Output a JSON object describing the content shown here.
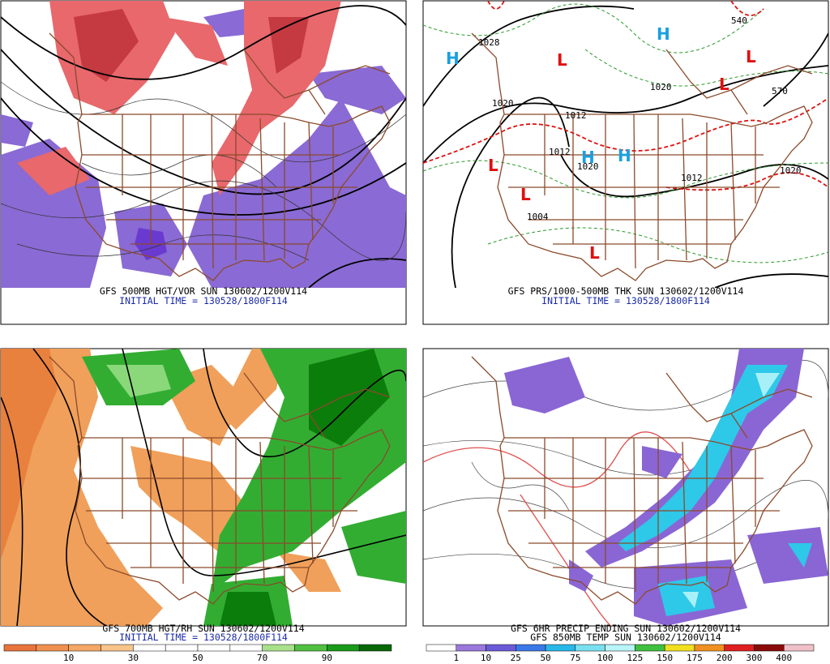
{
  "panels": [
    {
      "caption": "GFS 500MB HGT/VOR SUN 130602/1200V114",
      "subcaption": "INITIAL TIME = 130528/1800F114"
    },
    {
      "caption": "GFS PRS/1000-500MB THK SUN 130602/1200V114",
      "subcaption": "INITIAL TIME = 130528/1800F114",
      "labels": [
        "1028",
        "H",
        "L",
        "H",
        "L",
        "L",
        "1020",
        "1020",
        "1012",
        "1012",
        "H",
        "H",
        "1020",
        "1012",
        "L",
        "L",
        "1004",
        "L",
        "1020",
        "540",
        "570"
      ]
    },
    {
      "caption": "GFS 700MB HGT/RH SUN 130602/1200V114",
      "subcaption": "INITIAL TIME = 130528/1800F114",
      "legend": [
        "10",
        "30",
        "50",
        "70",
        "90"
      ]
    },
    {
      "caption": "GFS 6HR PRECIP ENDING SUN 130602/1200V114",
      "subcaption": "GFS 850MB TEMP SUN 130602/1200V114",
      "legend": [
        "1",
        "10",
        "25",
        "50",
        "75",
        "100",
        "125",
        "150",
        "175",
        "200",
        "300",
        "400"
      ]
    }
  ]
}
